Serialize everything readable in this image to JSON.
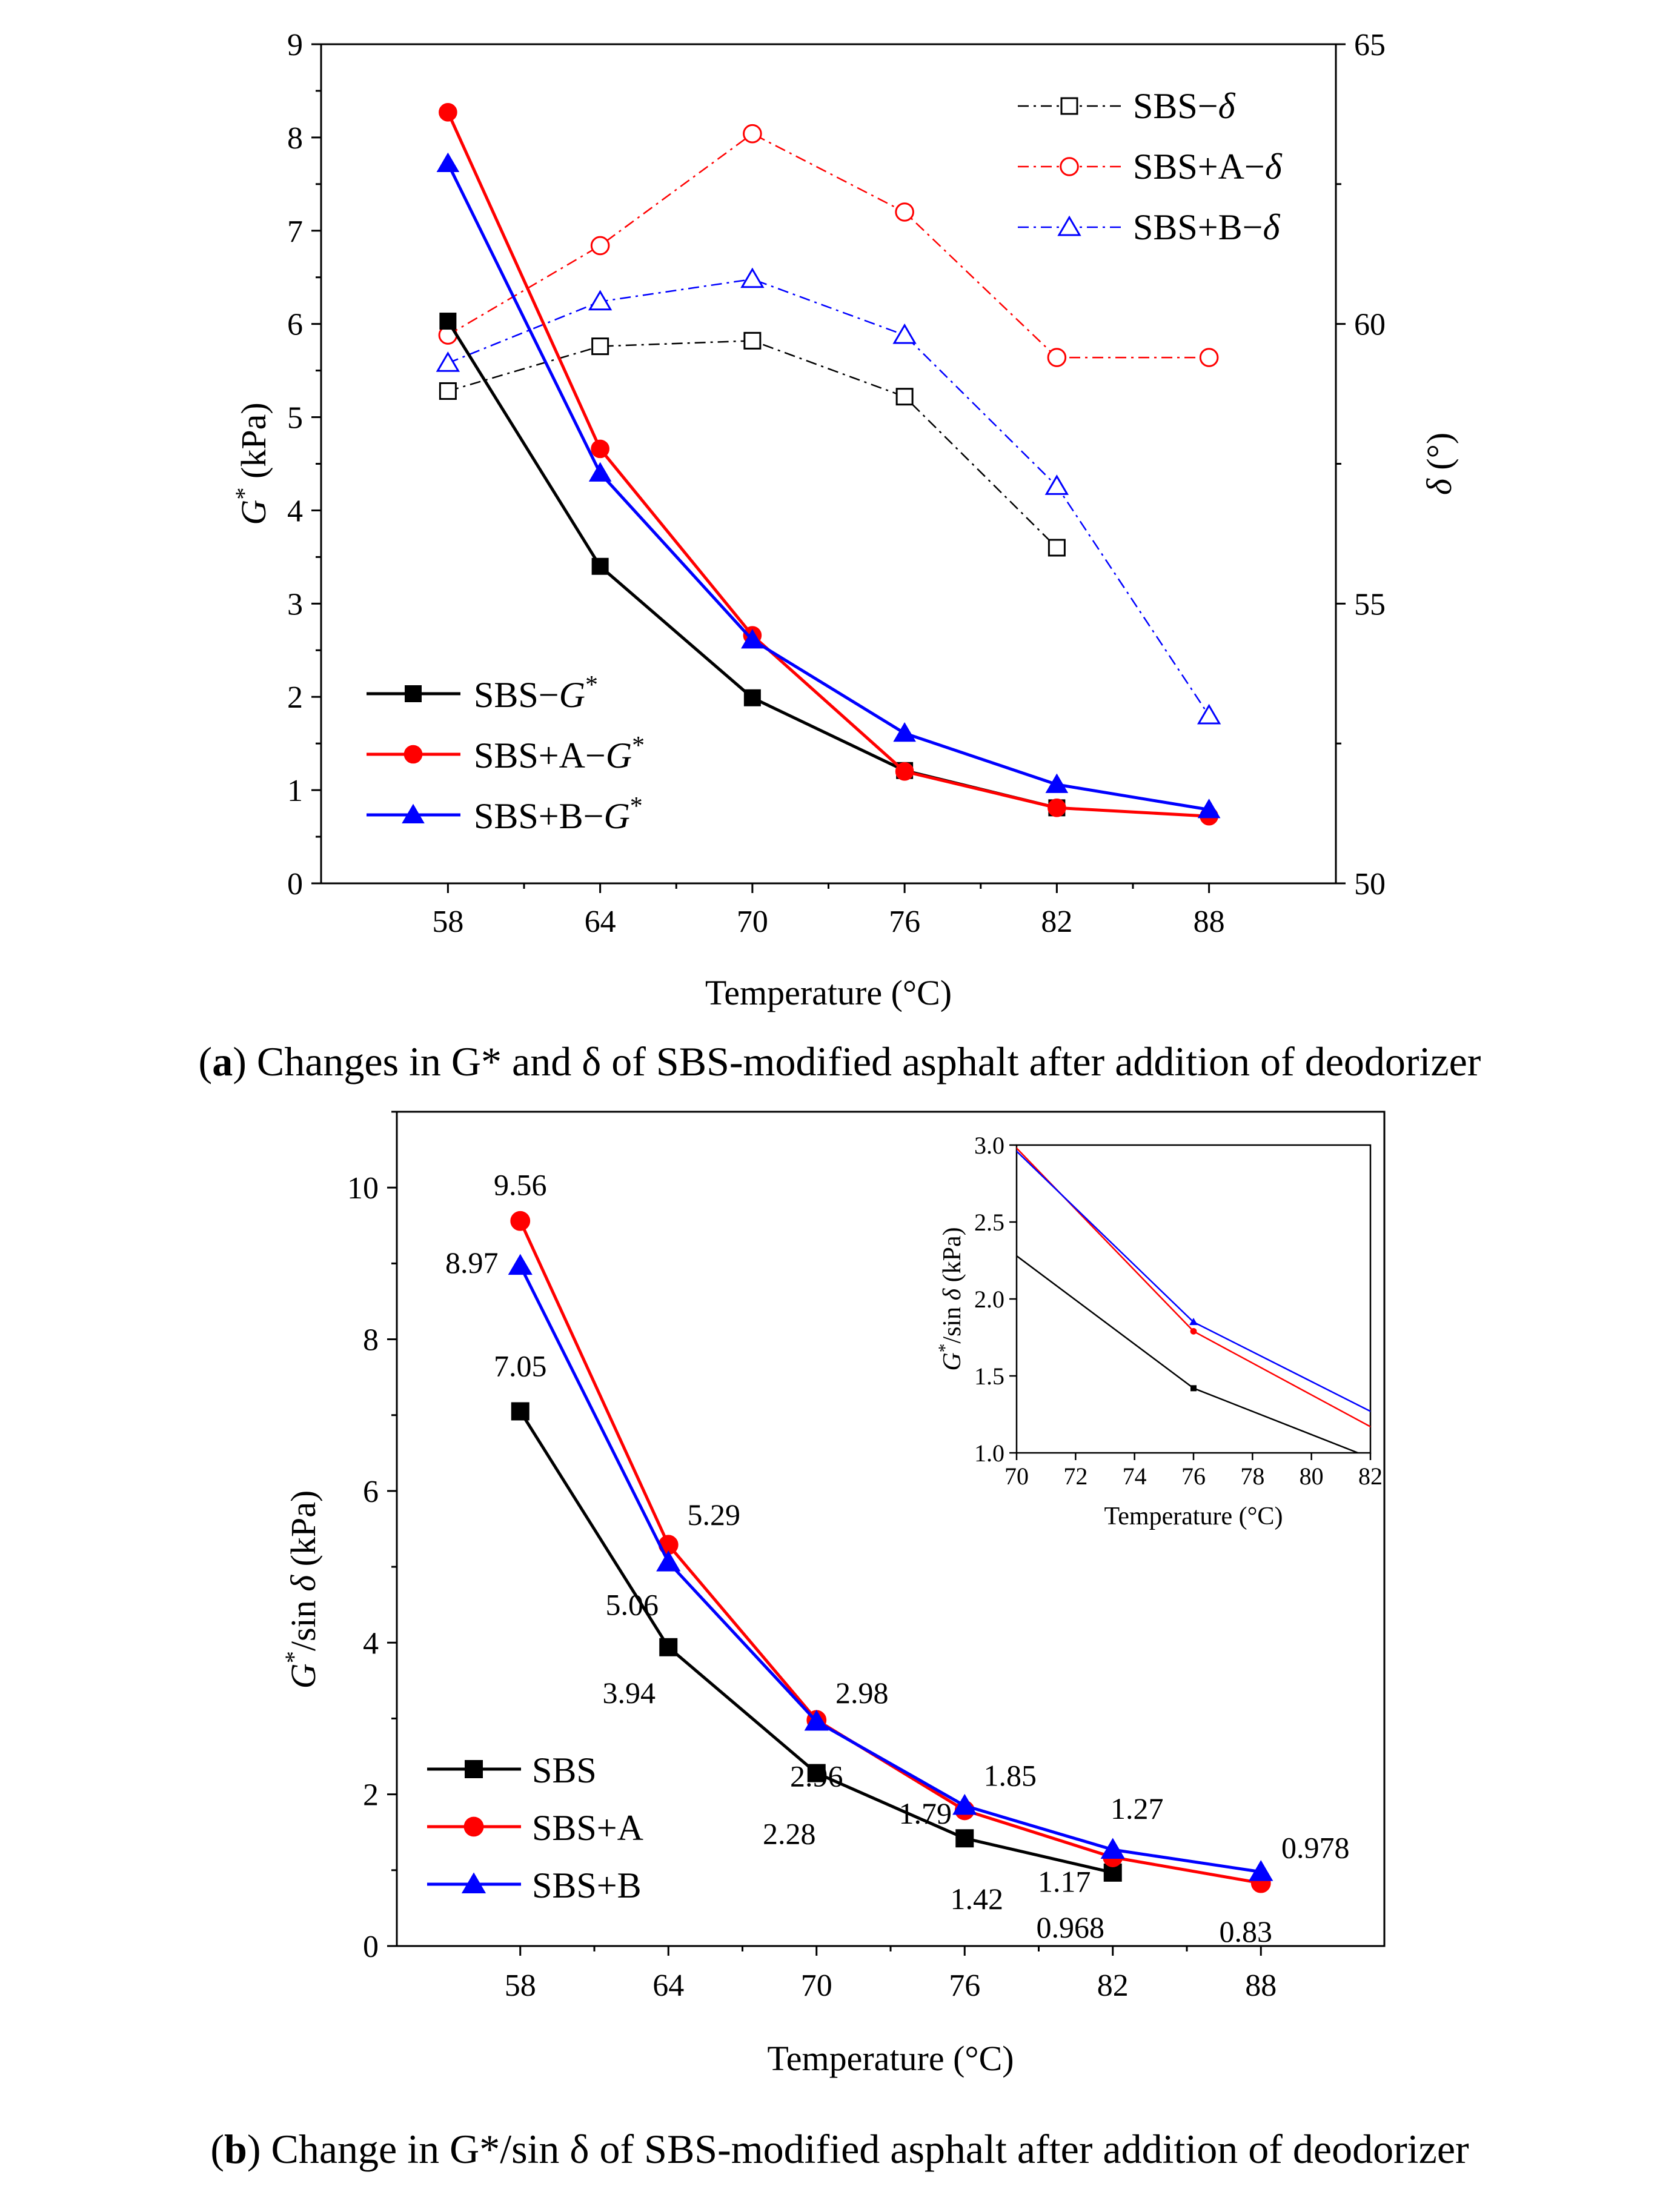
{
  "chart_data": [
    {
      "id": "a",
      "type": "line",
      "x": [
        58,
        64,
        70,
        76,
        82,
        88
      ],
      "xticks": [
        "58",
        "64",
        "70",
        "76",
        "82",
        "88"
      ],
      "xlabel": "Temperature (°C)",
      "ylabel_left": "G* (kPa)",
      "ylabel_right": "δ (°)",
      "ylim_left": [
        0,
        9
      ],
      "ylim_right": [
        50,
        65
      ],
      "yticks_left": [
        "0",
        "1",
        "2",
        "3",
        "4",
        "5",
        "6",
        "7",
        "8",
        "9"
      ],
      "yticks_right": [
        "50",
        "55",
        "60",
        "65"
      ],
      "caption": {
        "label": "a",
        "text": "Changes in G* and δ of SBS-modified asphalt after addition of deodorizer"
      },
      "series_left": [
        {
          "name": "SBS−G*",
          "values": [
            6.03,
            3.4,
            1.99,
            1.21,
            0.81,
            null
          ],
          "color": "#000000",
          "marker": "square"
        },
        {
          "name": "SBS+A−G*",
          "values": [
            8.27,
            4.66,
            2.66,
            1.2,
            0.81,
            0.72
          ],
          "color": "#ff0000",
          "marker": "circle"
        },
        {
          "name": "SBS+B−G*",
          "values": [
            7.72,
            4.4,
            2.61,
            1.61,
            1.06,
            0.79
          ],
          "color": "#0000ff",
          "marker": "triangle"
        }
      ],
      "series_right": [
        {
          "name": "SBS−δ",
          "values": [
            58.8,
            59.6,
            59.7,
            58.7,
            56.0,
            null
          ],
          "color": "#000000",
          "marker": "square-open"
        },
        {
          "name": "SBS+A−δ",
          "values": [
            59.8,
            61.4,
            63.4,
            62.0,
            59.4,
            59.4
          ],
          "color": "#ff0000",
          "marker": "circle-open"
        },
        {
          "name": "SBS+B−δ",
          "values": [
            59.3,
            60.4,
            60.8,
            59.8,
            57.1,
            53.0
          ],
          "color": "#0000ff",
          "marker": "triangle-open"
        }
      ]
    },
    {
      "id": "b",
      "type": "line",
      "x": [
        58,
        64,
        70,
        76,
        82,
        88
      ],
      "xticks": [
        "58",
        "64",
        "70",
        "76",
        "82",
        "88"
      ],
      "xlabel": "Temperature (°C)",
      "ylabel": "G*/sin δ (kPa)",
      "ylim": [
        0,
        11
      ],
      "yticks": [
        "0",
        "2",
        "4",
        "6",
        "8",
        "10"
      ],
      "caption": {
        "label": "b",
        "text": "Change in G*/sin δ of SBS-modified asphalt after addition of deodorizer"
      },
      "series": [
        {
          "name": "SBS",
          "values": [
            7.05,
            3.94,
            2.28,
            1.42,
            0.968,
            null
          ],
          "labels": [
            "7.05",
            "3.94",
            "2.28",
            "1.42",
            "0.968",
            ""
          ],
          "color": "#000000",
          "marker": "square"
        },
        {
          "name": "SBS+A",
          "values": [
            9.56,
            5.29,
            2.98,
            1.79,
            1.17,
            0.83
          ],
          "labels": [
            "9.56",
            "5.29",
            "2.98",
            "1.79",
            "1.17",
            "0.83"
          ],
          "color": "#ff0000",
          "marker": "circle"
        },
        {
          "name": "SBS+B",
          "values": [
            8.97,
            5.06,
            2.96,
            1.85,
            1.27,
            0.978
          ],
          "labels": [
            "8.97",
            "5.06",
            "2.96",
            "1.85",
            "1.27",
            "0.978"
          ],
          "color": "#0000ff",
          "marker": "triangle"
        }
      ],
      "inset": {
        "xlim": [
          70,
          82
        ],
        "ylim": [
          1.0,
          3.0
        ],
        "xticks": [
          "70",
          "72",
          "74",
          "76",
          "78",
          "80",
          "82"
        ],
        "yticks": [
          "1.0",
          "1.5",
          "2.0",
          "2.5",
          "3.0"
        ],
        "xlabel": "Temperature (°C)",
        "ylabel": "G*/sin δ (kPa)"
      }
    }
  ]
}
